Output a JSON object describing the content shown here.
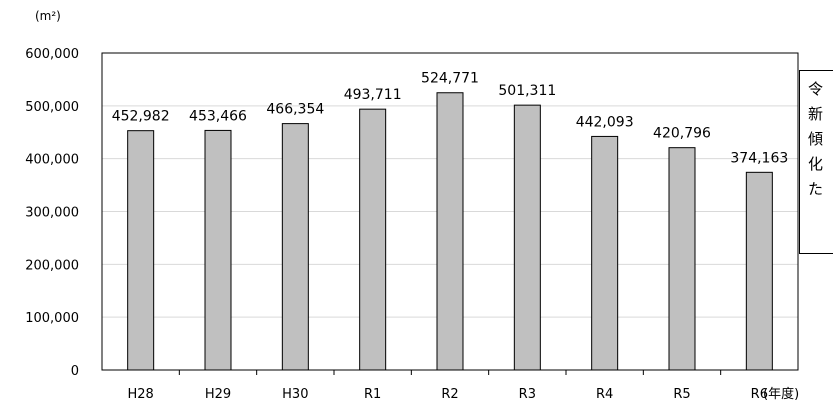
{
  "chart_data": {
    "type": "bar",
    "categories": [
      "H28",
      "H29",
      "H30",
      "R1",
      "R2",
      "R3",
      "R4",
      "R5",
      "R6"
    ],
    "values": [
      452982,
      453466,
      466354,
      493711,
      524771,
      501311,
      442093,
      420796,
      374163
    ],
    "value_labels": [
      "452,982",
      "453,466",
      "466,354",
      "493,711",
      "524,771",
      "501,311",
      "442,093",
      "420,796",
      "374,163"
    ],
    "y_ticks": [
      "0",
      "100,000",
      "200,000",
      "300,000",
      "400,000",
      "500,000",
      "600,000"
    ],
    "ylim": [
      0,
      600000
    ],
    "ylabel": "(m²)",
    "xlabel": "(年度)",
    "grid": true,
    "bar_color": "#c0c0c0"
  },
  "note": {
    "lines": [
      "令",
      "新",
      "傾",
      "化",
      "た"
    ]
  }
}
